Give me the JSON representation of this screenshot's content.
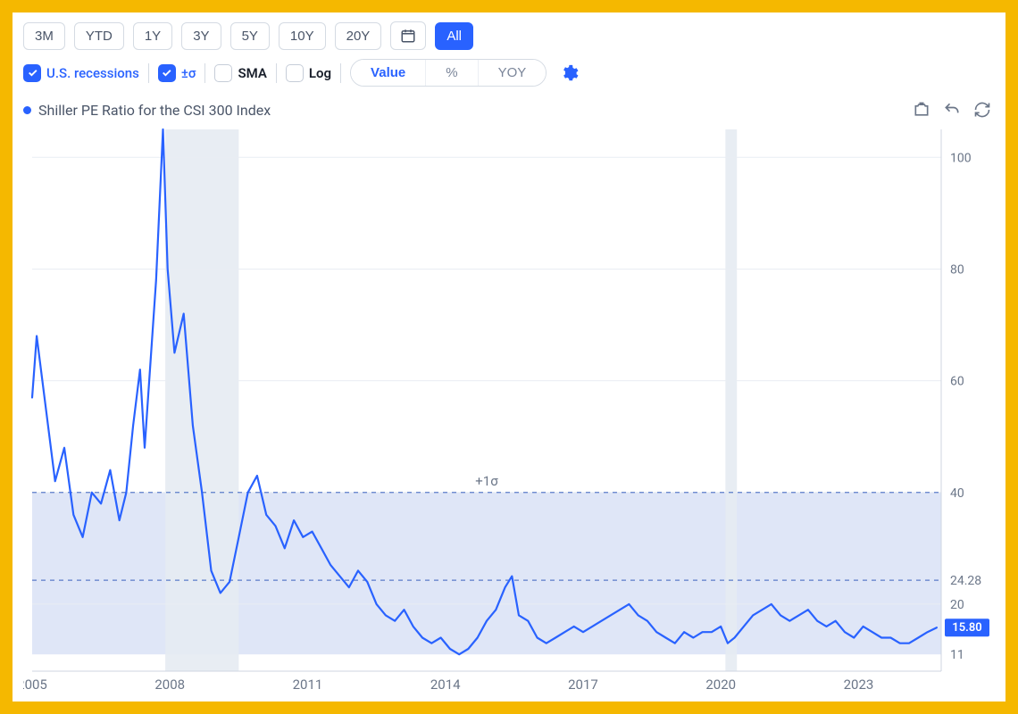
{
  "frame": {
    "border_color": "#f5b800",
    "background": "#ffffff"
  },
  "toolbar": {
    "ranges": [
      {
        "label": "3M",
        "active": false
      },
      {
        "label": "YTD",
        "active": false
      },
      {
        "label": "1Y",
        "active": false
      },
      {
        "label": "3Y",
        "active": false
      },
      {
        "label": "5Y",
        "active": false
      },
      {
        "label": "10Y",
        "active": false
      },
      {
        "label": "20Y",
        "active": false
      }
    ],
    "calendar_icon": "calendar",
    "all_label": "All",
    "checkboxes": {
      "recessions": {
        "label": "U.S. recessions",
        "checked": true,
        "label_color": "#2962ff"
      },
      "sigma": {
        "label": "±σ",
        "checked": true,
        "label_color": "#2962ff"
      },
      "sma": {
        "label": "SMA",
        "checked": false,
        "label_color": "#1a202c"
      },
      "log": {
        "label": "Log",
        "checked": false,
        "label_color": "#1a202c"
      }
    },
    "segments": [
      {
        "label": "Value",
        "active": true
      },
      {
        "label": "%",
        "active": false
      },
      {
        "label": "YOY",
        "active": false
      }
    ],
    "gear_icon": "gear"
  },
  "legend": {
    "dot_color": "#2962ff",
    "text": "Shiller PE Ratio for the CSI 300 Index",
    "tools": [
      "snapshot",
      "undo",
      "refresh"
    ]
  },
  "chart": {
    "type": "line",
    "line_color": "#2962ff",
    "line_width": 2.2,
    "background": "#ffffff",
    "x_domain": [
      2005,
      2024.8
    ],
    "y_domain": [
      8,
      105
    ],
    "x_ticks": [
      2005,
      2008,
      2011,
      2014,
      2017,
      2020,
      2023
    ],
    "y_ticks": [
      20,
      40,
      60,
      80,
      100
    ],
    "y_tick_extra": [
      {
        "value": 24.28,
        "label": "24.28"
      },
      {
        "value": 11,
        "label": "11"
      }
    ],
    "grid_color": "#e9edf3",
    "axis_label_color": "#6b7688",
    "axis_label_fontsize": 15,
    "sigma_band": {
      "upper": 40,
      "mid": 24.28,
      "lower": 11,
      "fill": "#b9c7ee",
      "fill_opacity": 0.45,
      "dash_color": "#5b7cc9",
      "label": "+1σ",
      "label_color": "#6b7688",
      "label_fontsize": 15
    },
    "recession_bands": [
      {
        "start": 2007.9,
        "end": 2009.5,
        "fill": "#e6ebf2",
        "opacity": 0.9
      },
      {
        "start": 2020.1,
        "end": 2020.35,
        "fill": "#e6ebf2",
        "opacity": 0.9
      }
    ],
    "current_value": {
      "value": 15.8,
      "label": "15.80",
      "badge_bg": "#2962ff",
      "badge_text_color": "#ffffff"
    },
    "series": [
      [
        2005.0,
        57
      ],
      [
        2005.1,
        68
      ],
      [
        2005.3,
        55
      ],
      [
        2005.5,
        42
      ],
      [
        2005.7,
        48
      ],
      [
        2005.9,
        36
      ],
      [
        2006.1,
        32
      ],
      [
        2006.3,
        40
      ],
      [
        2006.5,
        38
      ],
      [
        2006.7,
        44
      ],
      [
        2006.9,
        35
      ],
      [
        2007.05,
        40
      ],
      [
        2007.2,
        52
      ],
      [
        2007.35,
        62
      ],
      [
        2007.45,
        48
      ],
      [
        2007.55,
        60
      ],
      [
        2007.7,
        78
      ],
      [
        2007.85,
        105
      ],
      [
        2007.95,
        80
      ],
      [
        2008.1,
        65
      ],
      [
        2008.3,
        72
      ],
      [
        2008.5,
        52
      ],
      [
        2008.7,
        40
      ],
      [
        2008.9,
        26
      ],
      [
        2009.1,
        22
      ],
      [
        2009.3,
        24
      ],
      [
        2009.5,
        32
      ],
      [
        2009.7,
        40
      ],
      [
        2009.9,
        43
      ],
      [
        2010.1,
        36
      ],
      [
        2010.3,
        34
      ],
      [
        2010.5,
        30
      ],
      [
        2010.7,
        35
      ],
      [
        2010.9,
        32
      ],
      [
        2011.1,
        33
      ],
      [
        2011.3,
        30
      ],
      [
        2011.5,
        27
      ],
      [
        2011.7,
        25
      ],
      [
        2011.9,
        23
      ],
      [
        2012.1,
        26
      ],
      [
        2012.3,
        24
      ],
      [
        2012.5,
        20
      ],
      [
        2012.7,
        18
      ],
      [
        2012.9,
        17
      ],
      [
        2013.1,
        19
      ],
      [
        2013.3,
        16
      ],
      [
        2013.5,
        14
      ],
      [
        2013.7,
        13
      ],
      [
        2013.9,
        14
      ],
      [
        2014.1,
        12
      ],
      [
        2014.3,
        11
      ],
      [
        2014.5,
        12
      ],
      [
        2014.7,
        14
      ],
      [
        2014.9,
        17
      ],
      [
        2015.1,
        19
      ],
      [
        2015.3,
        23
      ],
      [
        2015.45,
        25
      ],
      [
        2015.6,
        18
      ],
      [
        2015.8,
        17
      ],
      [
        2016.0,
        14
      ],
      [
        2016.2,
        13
      ],
      [
        2016.4,
        14
      ],
      [
        2016.6,
        15
      ],
      [
        2016.8,
        16
      ],
      [
        2017.0,
        15
      ],
      [
        2017.2,
        16
      ],
      [
        2017.4,
        17
      ],
      [
        2017.6,
        18
      ],
      [
        2017.8,
        19
      ],
      [
        2018.0,
        20
      ],
      [
        2018.2,
        18
      ],
      [
        2018.4,
        17
      ],
      [
        2018.6,
        15
      ],
      [
        2018.8,
        14
      ],
      [
        2019.0,
        13
      ],
      [
        2019.2,
        15
      ],
      [
        2019.4,
        14
      ],
      [
        2019.6,
        15
      ],
      [
        2019.8,
        15
      ],
      [
        2020.0,
        16
      ],
      [
        2020.15,
        13
      ],
      [
        2020.3,
        14
      ],
      [
        2020.5,
        16
      ],
      [
        2020.7,
        18
      ],
      [
        2020.9,
        19
      ],
      [
        2021.1,
        20
      ],
      [
        2021.3,
        18
      ],
      [
        2021.5,
        17
      ],
      [
        2021.7,
        18
      ],
      [
        2021.9,
        19
      ],
      [
        2022.1,
        17
      ],
      [
        2022.3,
        16
      ],
      [
        2022.5,
        17
      ],
      [
        2022.7,
        15
      ],
      [
        2022.9,
        14
      ],
      [
        2023.1,
        16
      ],
      [
        2023.3,
        15
      ],
      [
        2023.5,
        14
      ],
      [
        2023.7,
        14
      ],
      [
        2023.9,
        13
      ],
      [
        2024.1,
        13
      ],
      [
        2024.3,
        14
      ],
      [
        2024.5,
        15
      ],
      [
        2024.7,
        15.8
      ]
    ]
  }
}
